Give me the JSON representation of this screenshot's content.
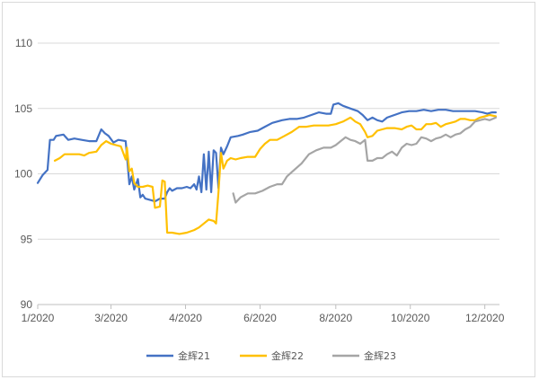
{
  "chart_data": {
    "type": "line",
    "title": "",
    "xlabel": "",
    "ylabel": "",
    "ylim": [
      90,
      110
    ],
    "y_ticks": [
      "90",
      "95",
      "100",
      "105",
      "110"
    ],
    "x_ticks": [
      {
        "label": "1/2020",
        "day": 0
      },
      {
        "label": "3/2020",
        "day": 60
      },
      {
        "label": "4/2020",
        "day": 121
      },
      {
        "label": "6/2020",
        "day": 182
      },
      {
        "label": "8/2020",
        "day": 244
      },
      {
        "label": "10/2020",
        "day": 305
      },
      {
        "label": "12/2020",
        "day": 366
      }
    ],
    "x_range_days": [
      0,
      378
    ],
    "grid": "horizontal",
    "legend_position": "bottom",
    "series": [
      {
        "name": "金辉21",
        "color": "#4472C4",
        "points": [
          [
            0,
            99.3
          ],
          [
            4,
            99.9
          ],
          [
            8,
            100.3
          ],
          [
            10,
            102.6
          ],
          [
            13,
            102.6
          ],
          [
            15,
            102.9
          ],
          [
            21,
            103.0
          ],
          [
            25,
            102.6
          ],
          [
            30,
            102.7
          ],
          [
            36,
            102.6
          ],
          [
            42,
            102.5
          ],
          [
            48,
            102.5
          ],
          [
            52,
            103.4
          ],
          [
            55,
            103.1
          ],
          [
            58,
            102.9
          ],
          [
            62,
            102.4
          ],
          [
            66,
            102.6
          ],
          [
            72,
            102.5
          ],
          [
            73,
            101.4
          ],
          [
            75,
            99.2
          ],
          [
            77,
            99.8
          ],
          [
            79,
            98.8
          ],
          [
            82,
            99.6
          ],
          [
            84,
            98.2
          ],
          [
            86,
            98.4
          ],
          [
            88,
            98.1
          ],
          [
            92,
            98.0
          ],
          [
            96,
            97.9
          ],
          [
            100,
            98.1
          ],
          [
            104,
            98.1
          ],
          [
            106,
            98.6
          ],
          [
            108,
            98.9
          ],
          [
            110,
            98.7
          ],
          [
            114,
            98.9
          ],
          [
            118,
            98.9
          ],
          [
            122,
            99.0
          ],
          [
            125,
            98.9
          ],
          [
            128,
            99.2
          ],
          [
            130,
            98.8
          ],
          [
            132,
            99.8
          ],
          [
            134,
            98.6
          ],
          [
            136,
            101.5
          ],
          [
            138,
            98.8
          ],
          [
            140,
            101.7
          ],
          [
            142,
            98.6
          ],
          [
            144,
            101.8
          ],
          [
            146,
            101.6
          ],
          [
            148,
            98.9
          ],
          [
            150,
            102.0
          ],
          [
            152,
            101.5
          ],
          [
            155,
            102.1
          ],
          [
            158,
            102.8
          ],
          [
            164,
            102.9
          ],
          [
            168,
            103.0
          ],
          [
            174,
            103.2
          ],
          [
            180,
            103.3
          ],
          [
            186,
            103.6
          ],
          [
            192,
            103.9
          ],
          [
            200,
            104.1
          ],
          [
            206,
            104.2
          ],
          [
            212,
            104.2
          ],
          [
            218,
            104.3
          ],
          [
            224,
            104.5
          ],
          [
            230,
            104.7
          ],
          [
            236,
            104.6
          ],
          [
            240,
            104.6
          ],
          [
            242,
            105.3
          ],
          [
            246,
            105.4
          ],
          [
            250,
            105.2
          ],
          [
            256,
            105.0
          ],
          [
            262,
            104.8
          ],
          [
            266,
            104.5
          ],
          [
            270,
            104.1
          ],
          [
            274,
            104.3
          ],
          [
            278,
            104.1
          ],
          [
            282,
            104.0
          ],
          [
            286,
            104.3
          ],
          [
            292,
            104.5
          ],
          [
            298,
            104.7
          ],
          [
            304,
            104.8
          ],
          [
            310,
            104.8
          ],
          [
            316,
            104.9
          ],
          [
            322,
            104.8
          ],
          [
            328,
            104.9
          ],
          [
            334,
            104.9
          ],
          [
            340,
            104.8
          ],
          [
            346,
            104.8
          ],
          [
            352,
            104.8
          ],
          [
            358,
            104.8
          ],
          [
            364,
            104.7
          ],
          [
            368,
            104.6
          ],
          [
            372,
            104.7
          ],
          [
            375,
            104.7
          ]
        ]
      },
      {
        "name": "金辉22",
        "color": "#FFC000",
        "points": [
          [
            14,
            101.0
          ],
          [
            18,
            101.2
          ],
          [
            22,
            101.5
          ],
          [
            28,
            101.5
          ],
          [
            34,
            101.5
          ],
          [
            38,
            101.4
          ],
          [
            42,
            101.6
          ],
          [
            48,
            101.7
          ],
          [
            52,
            102.2
          ],
          [
            56,
            102.5
          ],
          [
            60,
            102.3
          ],
          [
            64,
            102.2
          ],
          [
            68,
            102.1
          ],
          [
            70,
            101.6
          ],
          [
            72,
            101.1
          ],
          [
            73,
            102.0
          ],
          [
            75,
            100.2
          ],
          [
            77,
            100.4
          ],
          [
            79,
            99.3
          ],
          [
            82,
            99.0
          ],
          [
            86,
            99.0
          ],
          [
            90,
            99.1
          ],
          [
            94,
            99.0
          ],
          [
            96,
            97.4
          ],
          [
            100,
            97.5
          ],
          [
            102,
            99.5
          ],
          [
            104,
            99.4
          ],
          [
            106,
            95.5
          ],
          [
            110,
            95.5
          ],
          [
            116,
            95.4
          ],
          [
            122,
            95.5
          ],
          [
            128,
            95.7
          ],
          [
            132,
            95.9
          ],
          [
            136,
            96.2
          ],
          [
            140,
            96.5
          ],
          [
            144,
            96.4
          ],
          [
            146,
            96.2
          ],
          [
            148,
            98.6
          ],
          [
            150,
            101.6
          ],
          [
            152,
            100.4
          ],
          [
            155,
            101.0
          ],
          [
            158,
            101.2
          ],
          [
            162,
            101.1
          ],
          [
            166,
            101.2
          ],
          [
            172,
            101.3
          ],
          [
            178,
            101.3
          ],
          [
            182,
            101.9
          ],
          [
            186,
            102.3
          ],
          [
            190,
            102.6
          ],
          [
            196,
            102.6
          ],
          [
            202,
            102.9
          ],
          [
            208,
            103.2
          ],
          [
            214,
            103.6
          ],
          [
            220,
            103.6
          ],
          [
            226,
            103.7
          ],
          [
            232,
            103.7
          ],
          [
            238,
            103.7
          ],
          [
            244,
            103.8
          ],
          [
            250,
            104.0
          ],
          [
            256,
            104.3
          ],
          [
            260,
            104.0
          ],
          [
            264,
            103.8
          ],
          [
            268,
            103.2
          ],
          [
            270,
            102.8
          ],
          [
            274,
            102.9
          ],
          [
            278,
            103.3
          ],
          [
            282,
            103.4
          ],
          [
            286,
            103.5
          ],
          [
            292,
            103.5
          ],
          [
            298,
            103.4
          ],
          [
            302,
            103.6
          ],
          [
            306,
            103.7
          ],
          [
            310,
            103.4
          ],
          [
            314,
            103.4
          ],
          [
            318,
            103.8
          ],
          [
            322,
            103.8
          ],
          [
            326,
            103.9
          ],
          [
            330,
            103.6
          ],
          [
            334,
            103.8
          ],
          [
            338,
            103.9
          ],
          [
            342,
            104.0
          ],
          [
            346,
            104.2
          ],
          [
            350,
            104.2
          ],
          [
            354,
            104.1
          ],
          [
            358,
            104.1
          ],
          [
            362,
            104.3
          ],
          [
            366,
            104.4
          ],
          [
            370,
            104.5
          ],
          [
            375,
            104.4
          ]
        ]
      },
      {
        "name": "金辉23",
        "color": "#A5A5A5",
        "points": [
          [
            160,
            98.5
          ],
          [
            162,
            97.8
          ],
          [
            166,
            98.2
          ],
          [
            172,
            98.5
          ],
          [
            178,
            98.5
          ],
          [
            184,
            98.7
          ],
          [
            190,
            99.0
          ],
          [
            196,
            99.2
          ],
          [
            200,
            99.2
          ],
          [
            204,
            99.8
          ],
          [
            210,
            100.3
          ],
          [
            216,
            100.8
          ],
          [
            222,
            101.5
          ],
          [
            228,
            101.8
          ],
          [
            234,
            102.0
          ],
          [
            240,
            102.0
          ],
          [
            244,
            102.2
          ],
          [
            248,
            102.5
          ],
          [
            252,
            102.8
          ],
          [
            256,
            102.6
          ],
          [
            260,
            102.5
          ],
          [
            264,
            102.3
          ],
          [
            268,
            102.6
          ],
          [
            270,
            101.0
          ],
          [
            274,
            101.0
          ],
          [
            278,
            101.2
          ],
          [
            282,
            101.2
          ],
          [
            286,
            101.5
          ],
          [
            290,
            101.7
          ],
          [
            294,
            101.4
          ],
          [
            298,
            102.0
          ],
          [
            302,
            102.3
          ],
          [
            306,
            102.2
          ],
          [
            310,
            102.3
          ],
          [
            314,
            102.8
          ],
          [
            318,
            102.7
          ],
          [
            322,
            102.5
          ],
          [
            326,
            102.7
          ],
          [
            330,
            102.8
          ],
          [
            334,
            103.0
          ],
          [
            338,
            102.8
          ],
          [
            342,
            103.0
          ],
          [
            346,
            103.1
          ],
          [
            350,
            103.4
          ],
          [
            354,
            103.6
          ],
          [
            358,
            104.0
          ],
          [
            362,
            104.1
          ],
          [
            366,
            104.2
          ],
          [
            370,
            104.1
          ],
          [
            375,
            104.3
          ]
        ]
      }
    ]
  }
}
